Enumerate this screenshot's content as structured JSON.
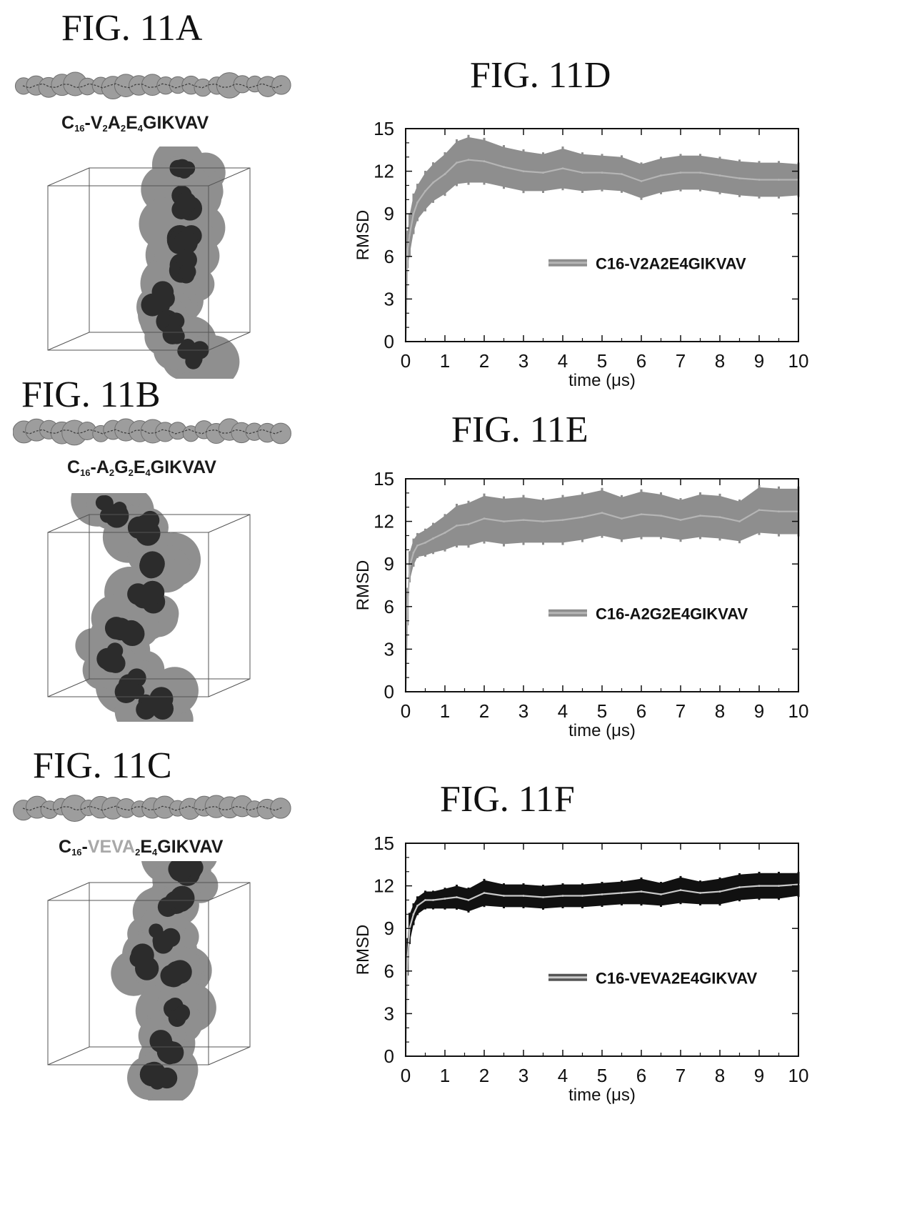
{
  "figures": {
    "a": {
      "label": "FIG. 11A",
      "peptide": {
        "prefix": "C",
        "prefix_sub": "16",
        "dash": "-",
        "segments": [
          {
            "t": "V",
            "s": "2"
          },
          {
            "t": "A",
            "s": "2"
          },
          {
            "t": "E",
            "s": "4"
          },
          {
            "t": "GIKVAV",
            "s": ""
          }
        ]
      }
    },
    "b": {
      "label": "FIG. 11B",
      "peptide": {
        "prefix": "C",
        "prefix_sub": "16",
        "dash": "-",
        "segments": [
          {
            "t": "A",
            "s": "2"
          },
          {
            "t": "G",
            "s": "2"
          },
          {
            "t": "E",
            "s": "4"
          },
          {
            "t": "GIKVAV",
            "s": ""
          }
        ]
      }
    },
    "c": {
      "label": "FIG. 11C",
      "peptide": {
        "prefix": "C",
        "prefix_sub": "16",
        "dash": "-",
        "segments": [
          {
            "t": "VEVA",
            "s": "2",
            "pale": true
          },
          {
            "t": "E",
            "s": "4"
          },
          {
            "t": "GIKVAV",
            "s": ""
          }
        ]
      }
    },
    "d": {
      "label": "FIG. 11D"
    },
    "e": {
      "label": "FIG. 11E"
    },
    "f": {
      "label": "FIG. 11F"
    }
  },
  "colors": {
    "band_gray": "#8e8e8e",
    "band_black": "#111111",
    "mean_line_f": "#c9c9c9",
    "axis": "#111111"
  },
  "chart_data": [
    {
      "id": "11D",
      "type": "line",
      "title": "",
      "xlabel": "time (μs)",
      "ylabel": "RMSD",
      "xlim": [
        0,
        10
      ],
      "ylim": [
        0,
        15
      ],
      "xticks": [
        0,
        1,
        2,
        3,
        4,
        5,
        6,
        7,
        8,
        9,
        10
      ],
      "yticks": [
        0,
        3,
        6,
        9,
        12,
        15
      ],
      "grid": false,
      "legend": "center-right",
      "band_style": "gray",
      "series": [
        {
          "name": "C16-V2A2E4GIKVAV",
          "x": [
            0,
            0.05,
            0.1,
            0.2,
            0.3,
            0.5,
            0.7,
            1.0,
            1.3,
            1.6,
            2.0,
            2.5,
            3.0,
            3.5,
            4.0,
            4.5,
            5.0,
            5.5,
            6.0,
            6.5,
            7.0,
            7.5,
            8.0,
            8.5,
            9.0,
            9.5,
            10.0
          ],
          "y": [
            0,
            6.5,
            7.5,
            9.0,
            9.8,
            10.6,
            11.2,
            11.8,
            12.6,
            12.8,
            12.7,
            12.3,
            12.0,
            11.9,
            12.2,
            11.9,
            11.9,
            11.8,
            11.3,
            11.7,
            11.9,
            11.9,
            11.7,
            11.5,
            11.4,
            11.4,
            11.4
          ],
          "err": [
            0,
            1.2,
            1.4,
            1.3,
            1.2,
            1.3,
            1.3,
            1.4,
            1.5,
            1.6,
            1.5,
            1.4,
            1.4,
            1.3,
            1.4,
            1.3,
            1.2,
            1.2,
            1.2,
            1.2,
            1.2,
            1.2,
            1.2,
            1.2,
            1.2,
            1.2,
            1.1
          ]
        }
      ]
    },
    {
      "id": "11E",
      "type": "line",
      "title": "",
      "xlabel": "time (μs)",
      "ylabel": "RMSD",
      "xlim": [
        0,
        10
      ],
      "ylim": [
        0,
        15
      ],
      "xticks": [
        0,
        1,
        2,
        3,
        4,
        5,
        6,
        7,
        8,
        9,
        10
      ],
      "yticks": [
        0,
        3,
        6,
        9,
        12,
        15
      ],
      "grid": false,
      "legend": "center-right",
      "band_style": "gray",
      "series": [
        {
          "name": "C16-A2G2E4GIKVAV",
          "x": [
            0,
            0.05,
            0.1,
            0.2,
            0.3,
            0.5,
            0.7,
            1.0,
            1.3,
            1.6,
            2.0,
            2.5,
            3.0,
            3.5,
            4.0,
            4.5,
            5.0,
            5.5,
            6.0,
            6.5,
            7.0,
            7.5,
            8.0,
            8.5,
            9.0,
            9.5,
            10.0
          ],
          "y": [
            0,
            6.0,
            8.8,
            9.8,
            10.3,
            10.5,
            10.8,
            11.2,
            11.7,
            11.8,
            12.2,
            12.0,
            12.1,
            12.0,
            12.1,
            12.3,
            12.6,
            12.2,
            12.5,
            12.4,
            12.1,
            12.4,
            12.3,
            12.0,
            12.8,
            12.7,
            12.7
          ],
          "err": [
            0,
            1.2,
            1.0,
            0.9,
            0.8,
            0.9,
            1.0,
            1.2,
            1.4,
            1.5,
            1.6,
            1.6,
            1.6,
            1.5,
            1.6,
            1.6,
            1.6,
            1.5,
            1.6,
            1.5,
            1.4,
            1.5,
            1.5,
            1.4,
            1.6,
            1.6,
            1.6
          ]
        }
      ]
    },
    {
      "id": "11F",
      "type": "line",
      "title": "",
      "xlabel": "time (μs)",
      "ylabel": "RMSD",
      "xlim": [
        0,
        10
      ],
      "ylim": [
        0,
        15
      ],
      "xticks": [
        0,
        1,
        2,
        3,
        4,
        5,
        6,
        7,
        8,
        9,
        10
      ],
      "yticks": [
        0,
        3,
        6,
        9,
        12,
        15
      ],
      "grid": false,
      "legend": "center-right",
      "band_style": "black",
      "series": [
        {
          "name": "C16-VEVA2E4GIKVAV",
          "x": [
            0,
            0.05,
            0.1,
            0.2,
            0.3,
            0.5,
            0.7,
            1.0,
            1.3,
            1.6,
            2.0,
            2.5,
            3.0,
            3.5,
            4.0,
            4.5,
            5.0,
            5.5,
            6.0,
            6.5,
            7.0,
            7.5,
            8.0,
            8.5,
            9.0,
            9.5,
            10.0
          ],
          "y": [
            0,
            7.0,
            9.0,
            10.0,
            10.6,
            11.0,
            11.0,
            11.1,
            11.2,
            11.0,
            11.5,
            11.3,
            11.3,
            11.2,
            11.3,
            11.3,
            11.4,
            11.5,
            11.6,
            11.4,
            11.7,
            11.5,
            11.6,
            11.9,
            12.0,
            12.0,
            12.1
          ],
          "err": [
            0,
            1.2,
            1.0,
            0.7,
            0.6,
            0.6,
            0.6,
            0.7,
            0.8,
            0.8,
            0.9,
            0.8,
            0.8,
            0.8,
            0.8,
            0.8,
            0.8,
            0.8,
            0.9,
            0.8,
            0.9,
            0.8,
            0.9,
            0.9,
            0.9,
            0.9,
            0.8
          ]
        }
      ]
    }
  ]
}
